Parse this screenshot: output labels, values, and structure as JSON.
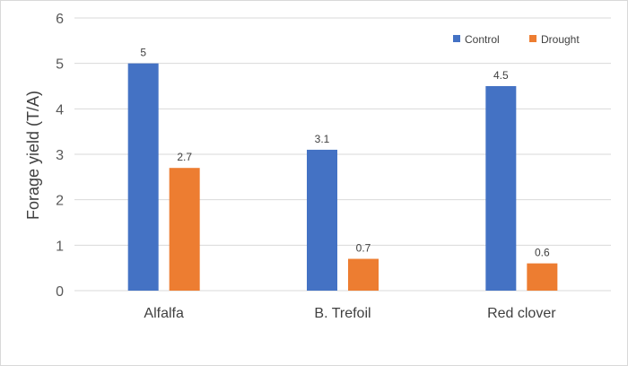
{
  "chart_data": {
    "type": "bar",
    "categories": [
      "Alfalfa",
      "B. Trefoil",
      "Red clover"
    ],
    "series": [
      {
        "name": "Control",
        "values": [
          5,
          3.1,
          4.5
        ],
        "color": "#4472c4"
      },
      {
        "name": "Drought",
        "values": [
          2.7,
          0.7,
          0.6
        ],
        "color": "#ed7d31"
      }
    ],
    "data_labels": [
      [
        "5",
        "3.1",
        "4.5"
      ],
      [
        "2.7",
        "0.7",
        "0.6"
      ]
    ],
    "title": "",
    "xlabel": "",
    "ylabel": "Forage yield (T/A)",
    "ylim": [
      0,
      6
    ],
    "yticks": [
      0,
      1,
      2,
      3,
      4,
      5,
      6
    ],
    "grid": true,
    "gridline_color": "#d9d9d9",
    "legend_position": "top-right"
  }
}
